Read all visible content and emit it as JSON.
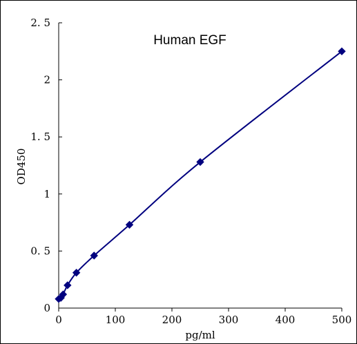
{
  "chart_data": {
    "type": "line",
    "title": "Human EGF",
    "xlabel": "pg/ml",
    "ylabel": "OD450",
    "xlim": [
      0,
      500
    ],
    "ylim": [
      0,
      2.5
    ],
    "x_ticks": [
      0,
      100,
      200,
      300,
      400,
      500
    ],
    "y_ticks": [
      0,
      0.5,
      1,
      1.5,
      2,
      2.5
    ],
    "x_tick_labels": [
      "0",
      "100",
      "200",
      "300",
      "400",
      "500"
    ],
    "y_tick_labels": [
      "0",
      "0. 5",
      "1",
      "1. 5",
      "2",
      "2. 5"
    ],
    "grid": false,
    "legend": "none",
    "series": [
      {
        "x": [
          0,
          3.9,
          7.8,
          15.6,
          31.25,
          62.5,
          125,
          250,
          500
        ],
        "y": [
          0.08,
          0.09,
          0.12,
          0.2,
          0.31,
          0.46,
          0.73,
          1.28,
          2.25
        ],
        "marker": "diamond",
        "color": "#00007F"
      }
    ]
  }
}
